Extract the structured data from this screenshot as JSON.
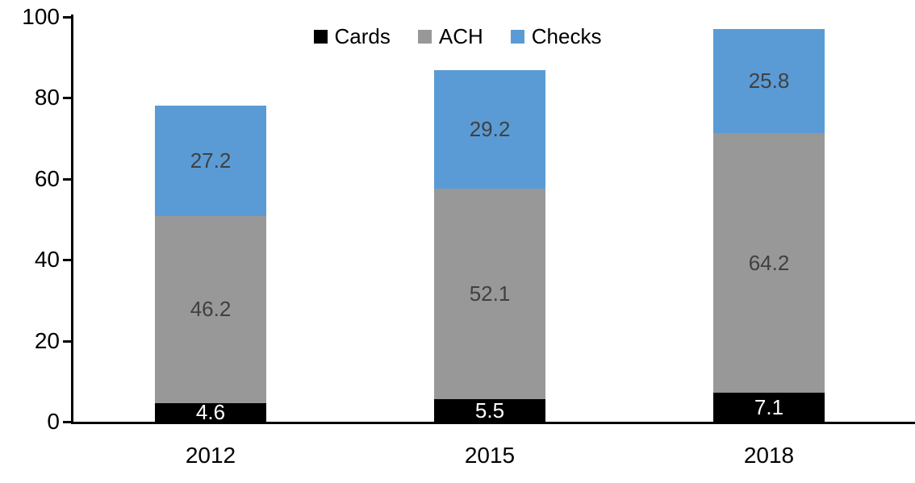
{
  "chart_data": {
    "type": "bar",
    "stacked": true,
    "categories": [
      "2012",
      "2015",
      "2018"
    ],
    "series": [
      {
        "name": "Cards",
        "color": "#000000",
        "label_color": "#FFFFFF",
        "values": [
          4.6,
          5.5,
          7.1
        ]
      },
      {
        "name": "ACH",
        "color": "#989898",
        "label_color": "#404040",
        "values": [
          46.2,
          52.1,
          64.2
        ]
      },
      {
        "name": "Checks",
        "color": "#5B9BD5",
        "label_color": "#404040",
        "values": [
          27.2,
          29.2,
          25.8
        ]
      }
    ],
    "ylim": [
      0,
      100
    ],
    "yticks": [
      0,
      20,
      40,
      60,
      80,
      100
    ],
    "grid": false,
    "legend_position": "top-center",
    "axis_color": "#000000",
    "background": "#FFFFFF",
    "data_labels": true,
    "xlabel": "",
    "ylabel": "",
    "title": ""
  }
}
